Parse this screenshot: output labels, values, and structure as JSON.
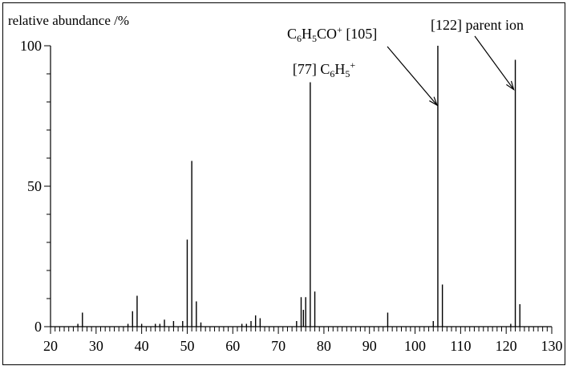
{
  "chart_data": {
    "type": "bar",
    "ylabel": "relative abundance /%",
    "xlim": [
      20,
      130
    ],
    "ylim": [
      0,
      100
    ],
    "x_ticks": [
      20,
      30,
      40,
      50,
      60,
      70,
      80,
      90,
      100,
      110,
      120,
      130
    ],
    "y_ticks": [
      0,
      50,
      100
    ],
    "grid": false,
    "series": [
      {
        "points": [
          {
            "x": 26,
            "y": 1
          },
          {
            "x": 27,
            "y": 5
          },
          {
            "x": 37,
            "y": 1
          },
          {
            "x": 38,
            "y": 5.5
          },
          {
            "x": 39,
            "y": 11
          },
          {
            "x": 40,
            "y": 1
          },
          {
            "x": 43,
            "y": 1
          },
          {
            "x": 44,
            "y": 1
          },
          {
            "x": 45,
            "y": 2.5
          },
          {
            "x": 47,
            "y": 2
          },
          {
            "x": 49,
            "y": 2
          },
          {
            "x": 50,
            "y": 31
          },
          {
            "x": 51,
            "y": 59
          },
          {
            "x": 52,
            "y": 9
          },
          {
            "x": 53,
            "y": 1.5
          },
          {
            "x": 62,
            "y": 1
          },
          {
            "x": 63,
            "y": 1
          },
          {
            "x": 64,
            "y": 2
          },
          {
            "x": 65,
            "y": 4
          },
          {
            "x": 66,
            "y": 3
          },
          {
            "x": 74,
            "y": 2
          },
          {
            "x": 75,
            "y": 10.5
          },
          {
            "x": 75.5,
            "y": 6
          },
          {
            "x": 76,
            "y": 10.5
          },
          {
            "x": 77,
            "y": 87
          },
          {
            "x": 78,
            "y": 12.5
          },
          {
            "x": 94,
            "y": 5
          },
          {
            "x": 104,
            "y": 2
          },
          {
            "x": 105,
            "y": 100
          },
          {
            "x": 106,
            "y": 15
          },
          {
            "x": 121,
            "y": 1
          },
          {
            "x": 122,
            "y": 95
          },
          {
            "x": 123,
            "y": 8
          }
        ]
      }
    ],
    "annotations": [
      {
        "id": "a77",
        "parts": [
          [
            "",
            "[77] C"
          ],
          [
            "sub",
            "6"
          ],
          [
            "",
            "H"
          ],
          [
            "sub",
            "5"
          ],
          [
            "sup",
            "+"
          ]
        ],
        "x": 77,
        "y": 87
      },
      {
        "id": "a105",
        "parts": [
          [
            "",
            "C"
          ],
          [
            "sub",
            "6"
          ],
          [
            "",
            "H"
          ],
          [
            "sub",
            "5"
          ],
          [
            "",
            "CO"
          ],
          [
            "sup",
            "+"
          ],
          [
            "",
            " [105]"
          ]
        ],
        "x": 105,
        "y": 80
      },
      {
        "id": "a122",
        "parts": [
          [
            "",
            "[122] parent ion"
          ]
        ],
        "x": 122,
        "y": 85
      }
    ]
  }
}
